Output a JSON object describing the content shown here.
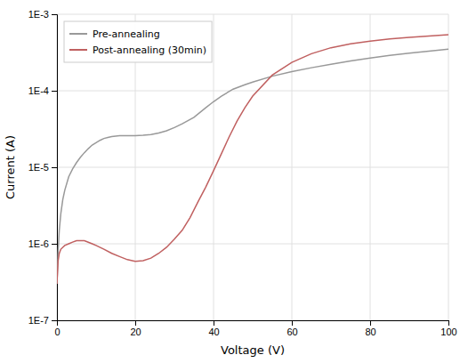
{
  "chart_data": {
    "type": "line",
    "xlabel": "Voltage (V)",
    "ylabel": "Current (A)",
    "xlim": [
      0,
      100
    ],
    "ylim": [
      1e-07,
      0.001
    ],
    "xticks": [
      0,
      20,
      40,
      60,
      80,
      100
    ],
    "yticks": [
      {
        "value": 1e-07,
        "label": "1E-7"
      },
      {
        "value": 1e-06,
        "label": "1E-6"
      },
      {
        "value": 1e-05,
        "label": "1E-5"
      },
      {
        "value": 0.0001,
        "label": "1E-4"
      },
      {
        "value": 0.001,
        "label": "1E-3"
      }
    ],
    "log": "y",
    "grid": true,
    "legend": "upper-left",
    "series": [
      {
        "name": "Pre-annealing",
        "color": "#999999",
        "x": [
          0.0,
          0.3,
          0.6,
          1.0,
          1.5,
          2.0,
          3.0,
          4.0,
          5.0,
          6.0,
          7.0,
          8.0,
          9.0,
          10.0,
          11.0,
          12.0,
          13.0,
          14.0,
          15.0,
          16.0,
          17.0,
          18.0,
          19.0,
          20.0,
          22.0,
          24.0,
          26.0,
          28.0,
          30.0,
          32.0,
          35.0,
          38.0,
          40.0,
          42.0,
          45.0,
          48.0,
          50.0,
          55.0,
          60.0,
          65.0,
          70.0,
          75.0,
          80.0,
          85.0,
          90.0,
          95.0,
          100.0
        ],
        "values": [
          3e-07,
          8e-07,
          1.5e-06,
          2.5e-06,
          3.8e-06,
          5e-06,
          7.5e-06,
          9.5e-06,
          1.15e-05,
          1.35e-05,
          1.55e-05,
          1.75e-05,
          1.95e-05,
          2.1e-05,
          2.25e-05,
          2.38e-05,
          2.45e-05,
          2.52e-05,
          2.56e-05,
          2.58e-05,
          2.59e-05,
          2.59e-05,
          2.59e-05,
          2.59e-05,
          2.62e-05,
          2.68e-05,
          2.8e-05,
          3e-05,
          3.3e-05,
          3.7e-05,
          4.5e-05,
          6e-05,
          7.2e-05,
          8.5e-05,
          0.000105,
          0.00012,
          0.00013,
          0.000155,
          0.000178,
          0.0002,
          0.000222,
          0.000245,
          0.000268,
          0.00029,
          0.00031,
          0.00033,
          0.00035
        ]
      },
      {
        "name": "Post-annealing (30min)",
        "color": "#c06060",
        "x": [
          0.0,
          0.3,
          0.6,
          1.0,
          1.5,
          2.0,
          3.0,
          4.0,
          5.0,
          6.0,
          7.0,
          8.0,
          9.0,
          10.0,
          12.0,
          14.0,
          16.0,
          18.0,
          20.0,
          22.0,
          24.0,
          26.0,
          28.0,
          30.0,
          32.0,
          34.0,
          36.0,
          38.0,
          40.0,
          42.0,
          44.0,
          46.0,
          48.0,
          50.0,
          55.0,
          60.0,
          65.0,
          70.0,
          75.0,
          80.0,
          85.0,
          90.0,
          95.0,
          100.0
        ],
        "values": [
          3e-07,
          6e-07,
          7.5e-07,
          8.5e-07,
          9e-07,
          9.5e-07,
          1e-06,
          1.05e-06,
          1.1e-06,
          1.1e-06,
          1.1e-06,
          1.05e-06,
          1e-06,
          9.5e-07,
          8.5e-07,
          7.5e-07,
          6.8e-07,
          6.2e-07,
          5.9e-07,
          6e-07,
          6.5e-07,
          7.5e-07,
          9e-07,
          1.15e-06,
          1.5e-06,
          2.2e-06,
          3.5e-06,
          5.5e-06,
          9e-06,
          1.5e-05,
          2.5e-05,
          4e-05,
          6e-05,
          8.5e-05,
          0.00016,
          0.000235,
          0.000305,
          0.000365,
          0.00041,
          0.000445,
          0.000475,
          0.0005,
          0.00052,
          0.00054
        ]
      }
    ]
  }
}
